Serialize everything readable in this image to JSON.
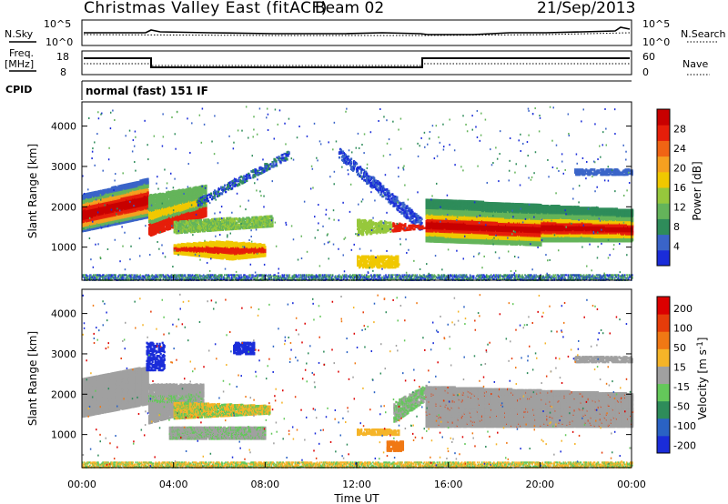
{
  "header": {
    "title": "Christmas Valley East (fitACF)",
    "beam": "Beam 02",
    "date": "21/Sep/2013"
  },
  "params": {
    "nsky_label": "N.Sky",
    "nsearch_label": "N.Search",
    "noise_ticks_left": [
      "10^5",
      "10^0"
    ],
    "noise_ticks_right": [
      "10^5",
      "10^0"
    ],
    "freq_label": "Freq.",
    "freq_unit": "[MHz]",
    "freq_ticks": [
      "18",
      "8"
    ],
    "nave_label": "Nave",
    "nave_ticks": [
      "60",
      "0"
    ],
    "cpid_label": "CPID",
    "cpid_value": "normal (fast) 151 IF"
  },
  "chart_data": [
    {
      "type": "heatmap",
      "title": "",
      "xlabel": "",
      "ylabel": "Slant Range [km]",
      "xlim_hours": [
        0,
        24
      ],
      "ylim_km": [
        180,
        4600
      ],
      "y_ticks": [
        1000,
        2000,
        3000,
        4000
      ],
      "colorbar": {
        "label": "Power [dB]",
        "ticks": [
          "4",
          "8",
          "12",
          "16",
          "20",
          "24",
          "28"
        ],
        "colors": [
          "#1a2cd9",
          "#3a64c8",
          "#2e8c5a",
          "#64b45a",
          "#96c83c",
          "#f0c800",
          "#f5a020",
          "#f06414",
          "#e61e0a",
          "#c80000"
        ]
      }
    },
    {
      "type": "heatmap",
      "title": "",
      "xlabel": "Time UT",
      "ylabel": "Slant Range [km]",
      "xlim_hours": [
        0,
        24
      ],
      "ylim_km": [
        180,
        4600
      ],
      "x_ticks": [
        "00:00",
        "04:00",
        "08:00",
        "12:00",
        "16:00",
        "20:00",
        "00:00"
      ],
      "y_ticks": [
        1000,
        2000,
        3000,
        4000
      ],
      "colorbar": {
        "label": "Velocity [m s^-1]",
        "ticks": [
          "200",
          "100",
          "50",
          "15",
          "-15",
          "-50",
          "-100",
          "-200"
        ],
        "colors": [
          "#1a2cd9",
          "#2a62c4",
          "#2e8c5a",
          "#64c85a",
          "#a0a0a0",
          "#f5b428",
          "#f07814",
          "#e63c0a",
          "#dc0000"
        ]
      }
    }
  ]
}
